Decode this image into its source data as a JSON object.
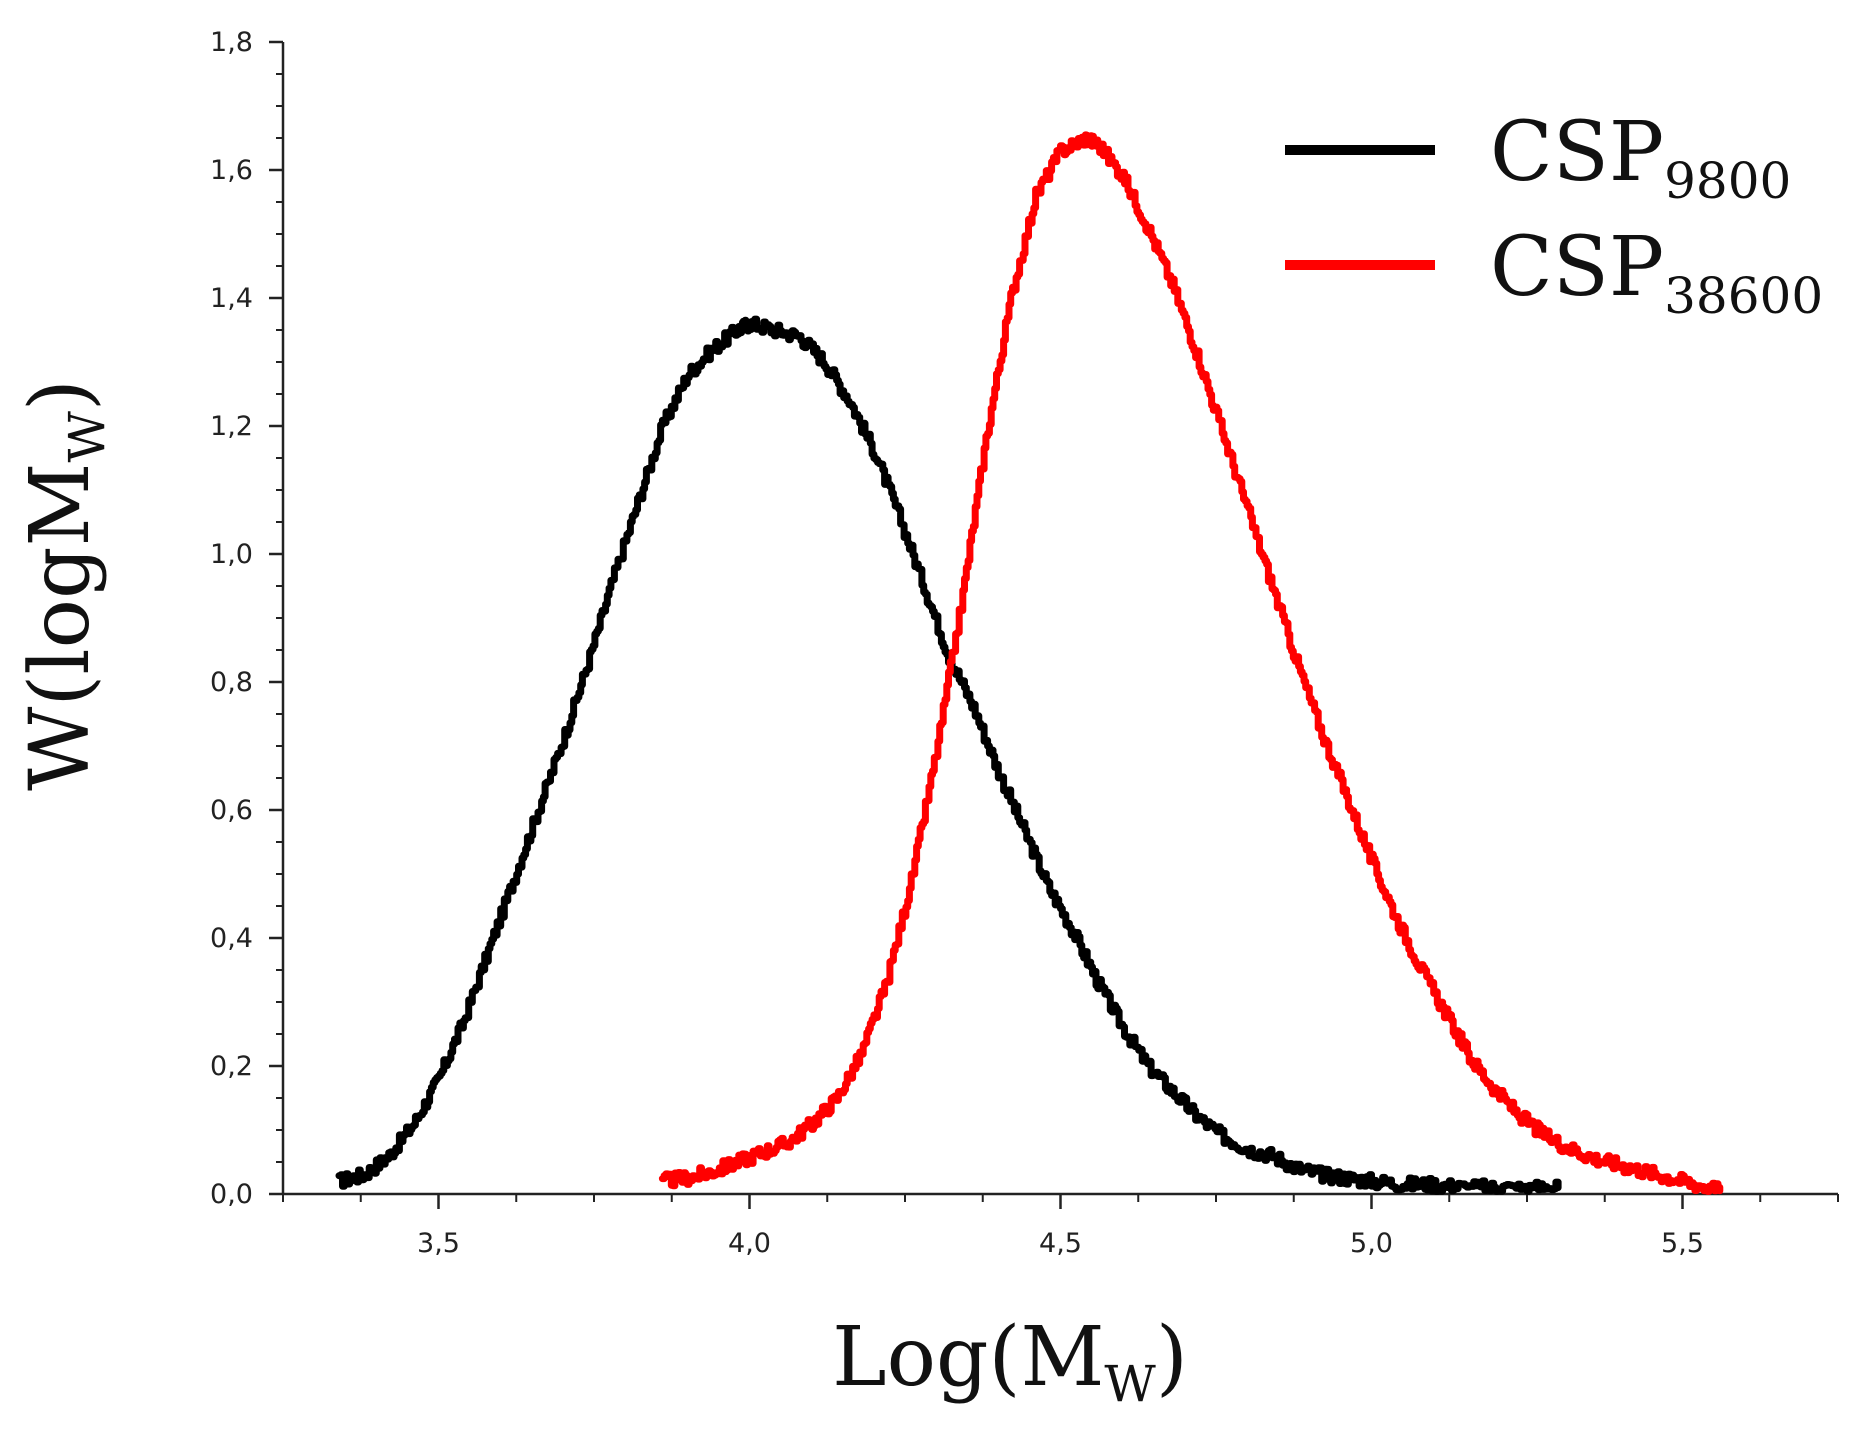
{
  "chart_data": {
    "type": "line",
    "title": "",
    "xlabel": {
      "main": "Log(M",
      "sub": "W",
      "close": ")"
    },
    "ylabel": {
      "main": "W(logM",
      "sub": "W",
      "close": ")"
    },
    "xlim": [
      3.25,
      5.75
    ],
    "ylim": [
      0,
      1.8
    ],
    "x_ticks": [
      {
        "value": 3.5,
        "label": "3,5"
      },
      {
        "value": 4.0,
        "label": "4,0"
      },
      {
        "value": 4.5,
        "label": "4,5"
      },
      {
        "value": 5.0,
        "label": "5,0"
      },
      {
        "value": 5.5,
        "label": "5,5"
      }
    ],
    "y_ticks": [
      {
        "value": 0.0,
        "label": "0,0"
      },
      {
        "value": 0.2,
        "label": "0,2"
      },
      {
        "value": 0.4,
        "label": "0,4"
      },
      {
        "value": 0.6,
        "label": "0,6"
      },
      {
        "value": 0.8,
        "label": "0,8"
      },
      {
        "value": 1.0,
        "label": "1,0"
      },
      {
        "value": 1.2,
        "label": "1,2"
      },
      {
        "value": 1.4,
        "label": "1,4"
      },
      {
        "value": 1.6,
        "label": "1,6"
      },
      {
        "value": 1.8,
        "label": "1,8"
      }
    ],
    "grid": false,
    "legend_position": "top-right",
    "series": [
      {
        "name": "CSP",
        "subscript": "9800",
        "color": "#000000",
        "x": [
          3.34,
          3.38,
          3.42,
          3.46,
          3.5,
          3.54,
          3.58,
          3.62,
          3.66,
          3.7,
          3.74,
          3.78,
          3.82,
          3.86,
          3.9,
          3.94,
          3.98,
          4.0,
          4.04,
          4.08,
          4.12,
          4.16,
          4.2,
          4.24,
          4.28,
          4.32,
          4.36,
          4.4,
          4.44,
          4.48,
          4.52,
          4.56,
          4.6,
          4.64,
          4.68,
          4.72,
          4.76,
          4.8,
          4.84,
          4.88,
          4.92,
          4.96,
          5.0,
          5.05,
          5.1,
          5.15,
          5.2,
          5.25,
          5.3
        ],
        "y": [
          0.02,
          0.03,
          0.06,
          0.11,
          0.18,
          0.27,
          0.38,
          0.49,
          0.6,
          0.71,
          0.83,
          0.96,
          1.08,
          1.2,
          1.28,
          1.32,
          1.35,
          1.36,
          1.35,
          1.34,
          1.3,
          1.24,
          1.16,
          1.06,
          0.95,
          0.84,
          0.76,
          0.66,
          0.57,
          0.48,
          0.41,
          0.33,
          0.26,
          0.2,
          0.16,
          0.12,
          0.09,
          0.07,
          0.06,
          0.04,
          0.03,
          0.025,
          0.02,
          0.015,
          0.015,
          0.01,
          0.01,
          0.01,
          0.01
        ]
      },
      {
        "name": "CSP",
        "subscript": "38600",
        "color": "#ff0000",
        "x": [
          3.86,
          3.9,
          3.94,
          3.98,
          4.02,
          4.06,
          4.1,
          4.14,
          4.18,
          4.22,
          4.26,
          4.3,
          4.34,
          4.38,
          4.42,
          4.46,
          4.5,
          4.54,
          4.56,
          4.6,
          4.64,
          4.68,
          4.72,
          4.76,
          4.8,
          4.84,
          4.88,
          4.92,
          4.96,
          5.0,
          5.04,
          5.08,
          5.12,
          5.16,
          5.2,
          5.24,
          5.28,
          5.32,
          5.36,
          5.4,
          5.44,
          5.48,
          5.52,
          5.56
        ],
        "y": [
          0.02,
          0.025,
          0.035,
          0.05,
          0.065,
          0.08,
          0.11,
          0.15,
          0.22,
          0.33,
          0.49,
          0.69,
          0.92,
          1.18,
          1.4,
          1.56,
          1.63,
          1.65,
          1.64,
          1.59,
          1.51,
          1.42,
          1.31,
          1.19,
          1.07,
          0.95,
          0.83,
          0.72,
          0.62,
          0.52,
          0.43,
          0.35,
          0.28,
          0.21,
          0.16,
          0.12,
          0.09,
          0.07,
          0.055,
          0.045,
          0.035,
          0.025,
          0.015,
          0.005
        ]
      }
    ]
  }
}
